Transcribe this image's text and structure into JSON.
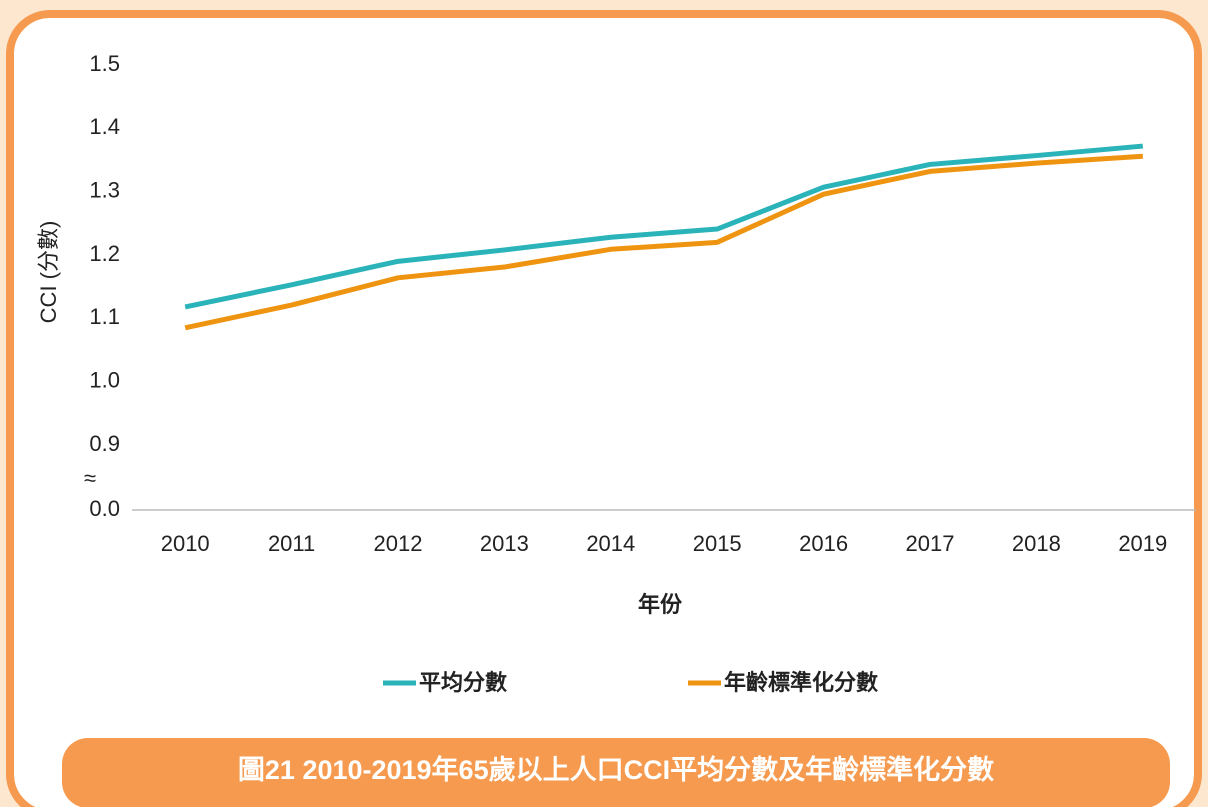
{
  "chart_data": {
    "type": "line",
    "title": "圖21  2010-2019年65歲以上人口CCI平均分數及年齡標準化分數",
    "x_label": "年份",
    "y_label": "CCI (分數)",
    "categories": [
      "2010",
      "2011",
      "2012",
      "2013",
      "2014",
      "2015",
      "2016",
      "2017",
      "2018",
      "2019"
    ],
    "series": [
      {
        "name": "平均分數",
        "color": "#2ab3b8",
        "values": [
          1.118,
          1.153,
          1.19,
          1.208,
          1.228,
          1.241,
          1.307,
          1.343,
          1.357,
          1.372
        ]
      },
      {
        "name": "年齡標準化分數",
        "color": "#ee9410",
        "values": [
          1.085,
          1.121,
          1.164,
          1.181,
          1.209,
          1.22,
          1.296,
          1.332,
          1.345,
          1.356
        ]
      }
    ],
    "ylim": [
      0,
      1.5
    ],
    "yticks": [
      {
        "value": 0,
        "label": "0.0"
      },
      0.9,
      {
        "value": 1,
        "label": "1.0"
      },
      1.1,
      1.2,
      1.3,
      1.4,
      1.5
    ],
    "axis_break": [
      0,
      0.9
    ],
    "axis_break_label": "≈",
    "grid": false,
    "legend": "bottom"
  }
}
